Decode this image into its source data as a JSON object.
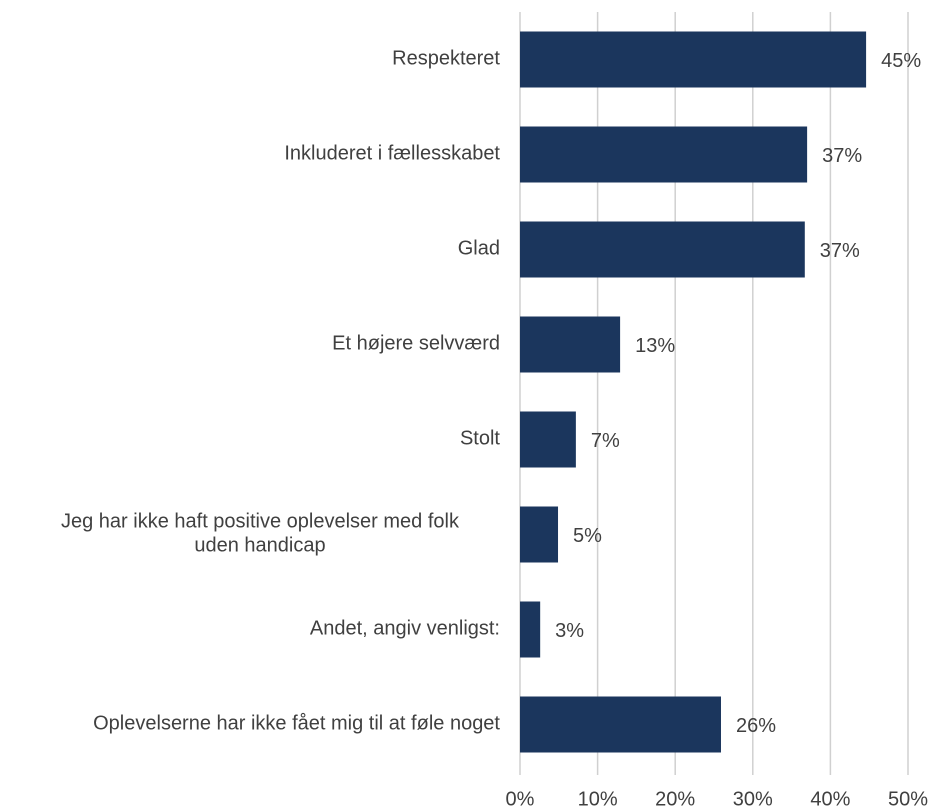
{
  "chart_data": {
    "type": "bar",
    "orientation": "horizontal",
    "categories": [
      "Respekteret",
      "Inkluderet i fællesskabet",
      "Glad",
      "Et højere selvværd",
      "Stolt",
      "Jeg har ikke haft positive oplevelser med folk\nuden handicap",
      "Andet, angiv venligst:",
      "Oplevelserne har ikke fået mig til at føle noget"
    ],
    "values": [
      44.6,
      37.0,
      36.7,
      12.9,
      7.2,
      4.9,
      2.6,
      25.9
    ],
    "value_labels": [
      "45%",
      "37%",
      "37%",
      "13%",
      "7%",
      "5%",
      "3%",
      "26%"
    ],
    "color": "#1b365d",
    "xlim": [
      0,
      50
    ],
    "xticks": [
      {
        "value": 0,
        "label": "0%"
      },
      {
        "value": 10,
        "label": "10%"
      },
      {
        "value": 20,
        "label": "20%"
      },
      {
        "value": 30,
        "label": "30%"
      },
      {
        "value": 40,
        "label": "40%"
      },
      {
        "value": 50,
        "label": "50%"
      }
    ],
    "grid": true
  }
}
